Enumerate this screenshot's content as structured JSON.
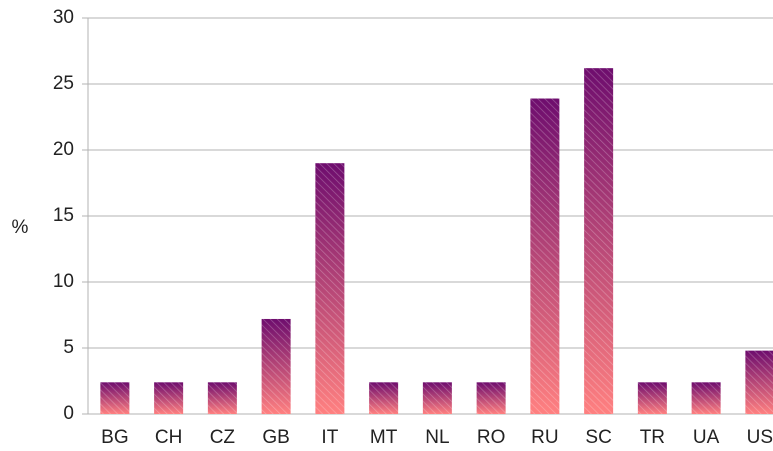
{
  "chart_data": {
    "type": "bar",
    "y_label": "%",
    "categories": [
      "BG",
      "CH",
      "CZ",
      "GB",
      "IT",
      "MT",
      "NL",
      "RO",
      "RU",
      "SC",
      "TR",
      "UA",
      "US"
    ],
    "values": [
      2.4,
      2.4,
      2.4,
      7.2,
      19.0,
      2.4,
      2.4,
      2.4,
      23.9,
      26.2,
      2.4,
      2.4,
      4.8
    ],
    "gradient": [
      "#6e0d6e",
      "#ff8080"
    ],
    "ylim": [
      0,
      30
    ],
    "yticks": [
      0,
      5,
      10,
      15,
      20,
      25,
      30
    ],
    "grid": true
  }
}
